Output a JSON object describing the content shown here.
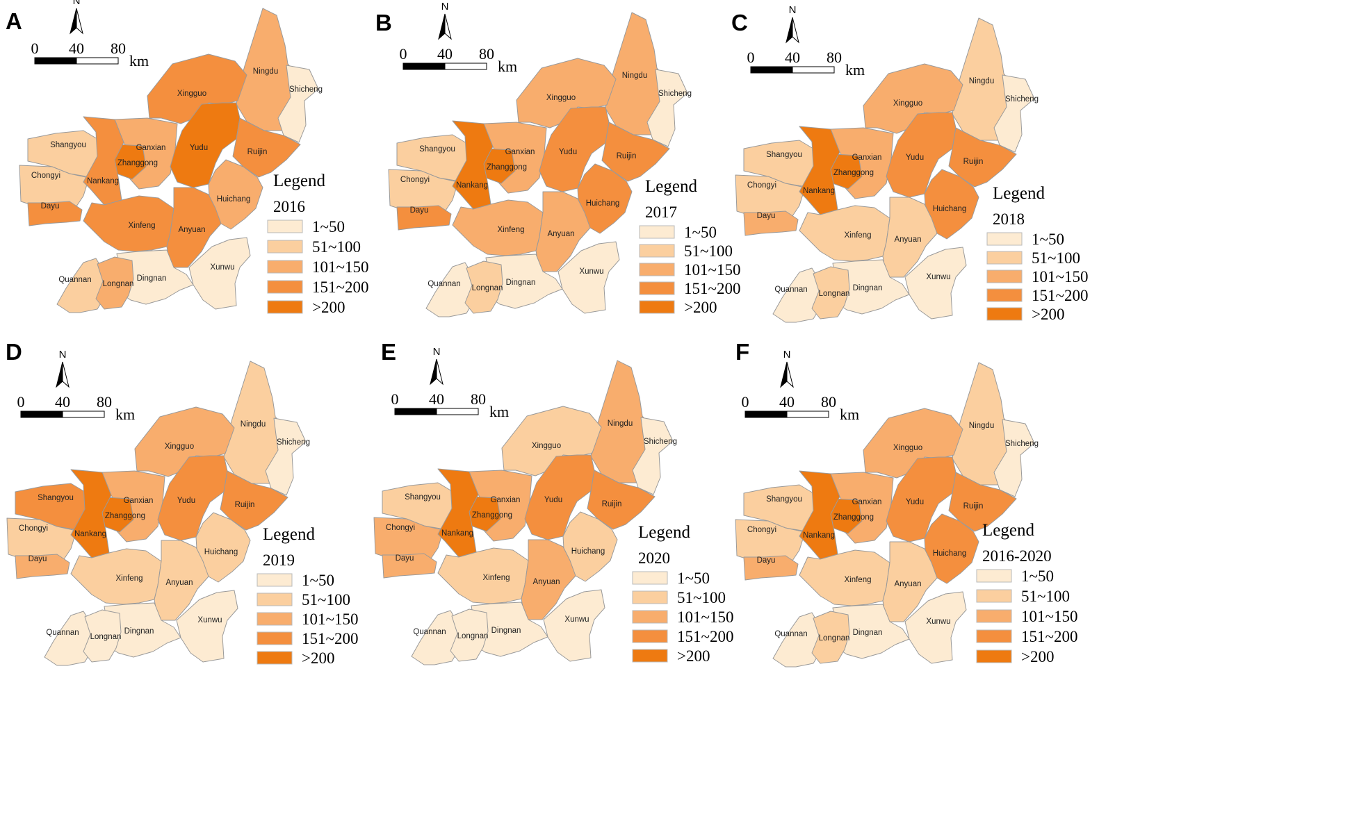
{
  "figure": {
    "colors": {
      "c1": "#fdebd2",
      "c2": "#fbcf9f",
      "c3": "#f8ad6d",
      "c4": "#f48f3e",
      "c5": "#ee7a11",
      "boundary": "#9a9a9a"
    },
    "legend_title": "Legend",
    "legend_classes": [
      "1~50",
      "51~100",
      "101~150",
      "151~200",
      ">200"
    ],
    "scale_bar": {
      "ticks": [
        "0",
        "40",
        "80"
      ],
      "unit": "km"
    },
    "north_label": "N",
    "regions": [
      "Ningdu",
      "Shicheng",
      "Xingguo",
      "Shangyou",
      "Ganxian",
      "Zhanggong",
      "Chongyi",
      "Nankang",
      "Yudu",
      "Ruijin",
      "Dayu",
      "Huichang",
      "Xinfeng",
      "Anyuan",
      "Dingnan",
      "Xunwu",
      "Quannan",
      "Longnan"
    ],
    "panels": [
      {
        "letter": "A",
        "year": "2016",
        "classes": [
          3,
          1,
          4,
          2,
          3,
          5,
          2,
          4,
          5,
          4,
          4,
          3,
          4,
          4,
          1,
          1,
          2,
          3
        ]
      },
      {
        "letter": "B",
        "year": "2017",
        "classes": [
          3,
          1,
          3,
          2,
          3,
          5,
          2,
          5,
          4,
          4,
          4,
          4,
          3,
          3,
          1,
          1,
          1,
          2
        ]
      },
      {
        "letter": "C",
        "year": "2018",
        "classes": [
          2,
          1,
          3,
          2,
          3,
          5,
          2,
          5,
          4,
          4,
          3,
          4,
          2,
          2,
          1,
          1,
          1,
          2
        ]
      },
      {
        "letter": "D",
        "year": "2019",
        "classes": [
          2,
          1,
          3,
          4,
          3,
          5,
          2,
          5,
          4,
          4,
          3,
          2,
          2,
          2,
          1,
          1,
          1,
          1
        ]
      },
      {
        "letter": "E",
        "year": "2020",
        "classes": [
          3,
          1,
          2,
          2,
          3,
          5,
          3,
          5,
          4,
          4,
          3,
          2,
          2,
          3,
          1,
          1,
          1,
          1
        ]
      },
      {
        "letter": "F",
        "year": "2016-2020",
        "classes": [
          2,
          1,
          3,
          2,
          3,
          5,
          2,
          5,
          4,
          4,
          3,
          4,
          2,
          2,
          1,
          1,
          1,
          2
        ]
      }
    ]
  }
}
